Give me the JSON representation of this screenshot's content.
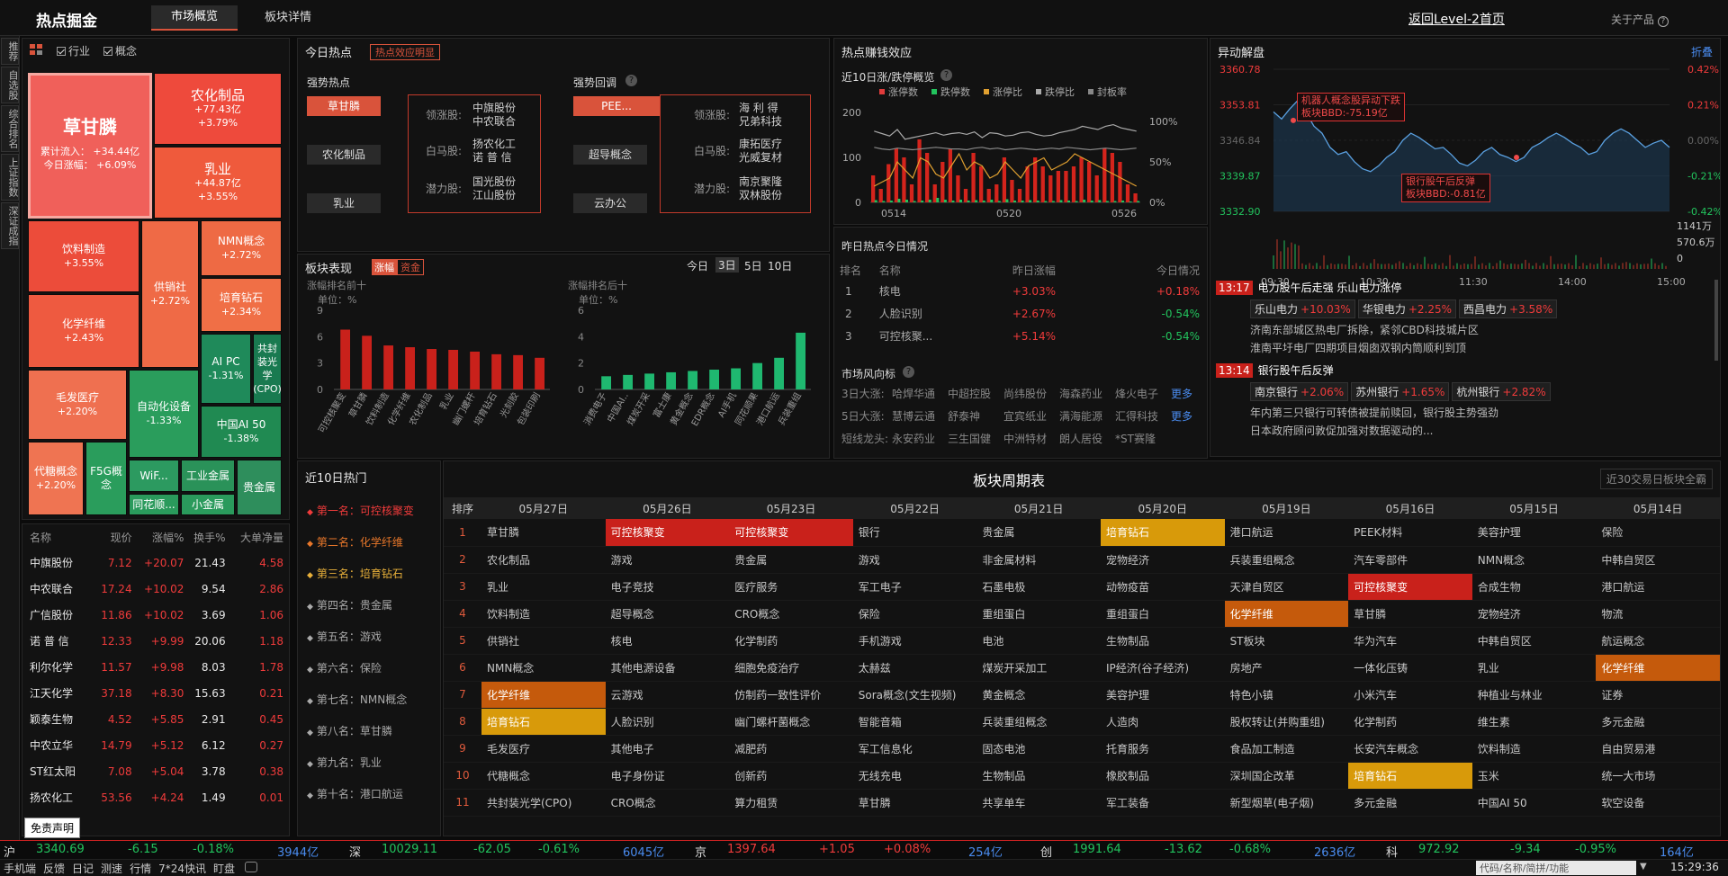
{
  "header": {
    "title": "热点掘金",
    "tabs": [
      "市场概览",
      "板块详情"
    ],
    "back_link": "返回Level-2首页",
    "about": "关于产品"
  },
  "left_strip": [
    "推荐",
    "自选股",
    "综合排名",
    "上证指数",
    "深证成指"
  ],
  "treemap": {
    "filters": [
      "行业",
      "概念"
    ],
    "main": {
      "name": "草甘膦",
      "inflow_label": "累计流入：",
      "inflow": "+34.44亿",
      "change_label": "今日涨幅：",
      "change": "+6.09%"
    },
    "tiles": [
      {
        "name": "农化制品",
        "a": "+77.43亿",
        "b": "+3.79%"
      },
      {
        "name": "乳业",
        "a": "+44.87亿",
        "b": "+3.55%"
      },
      {
        "name": "饮料制造",
        "a": "+3.55%"
      },
      {
        "name": "供销社",
        "a": "+2.72%"
      },
      {
        "name": "NMN概念",
        "a": "+2.72%"
      },
      {
        "name": "培育钻石",
        "a": "+2.34%"
      },
      {
        "name": "化学纤维",
        "a": "+2.43%"
      },
      {
        "name": "AI PC",
        "a": "-1.31%"
      },
      {
        "name": "共封装光学(CPO)",
        "a": ""
      },
      {
        "name": "毛发医疗",
        "a": "+2.20%"
      },
      {
        "name": "自动化设备",
        "a": "-1.33%"
      },
      {
        "name": "中国AI 50",
        "a": "-1.38%"
      },
      {
        "name": "代糖概念",
        "a": "+2.20%"
      },
      {
        "name": "F5G概念",
        "a": ""
      },
      {
        "name": "WiF...",
        "a": ""
      },
      {
        "name": "工业金属",
        "a": ""
      },
      {
        "name": "贵金属",
        "a": ""
      },
      {
        "name": "同花顺...",
        "a": ""
      },
      {
        "name": "小金属",
        "a": ""
      }
    ]
  },
  "stock_table": {
    "headers": [
      "名称",
      "现价",
      "涨幅%",
      "换手%",
      "大单净量"
    ],
    "rows": [
      [
        "中旗股份",
        "7.12",
        "+20.07",
        "21.43",
        "4.58"
      ],
      [
        "中农联合",
        "17.24",
        "+10.02",
        "9.54",
        "2.86"
      ],
      [
        "广信股份",
        "11.86",
        "+10.02",
        "3.69",
        "1.06"
      ],
      [
        "诺 普 信",
        "12.33",
        "+9.99",
        "20.06",
        "1.18"
      ],
      [
        "利尔化学",
        "11.57",
        "+9.98",
        "8.03",
        "1.78"
      ],
      [
        "江天化学",
        "37.18",
        "+8.30",
        "15.63",
        "0.21"
      ],
      [
        "颖泰生物",
        "4.52",
        "+5.85",
        "2.91",
        "0.45"
      ],
      [
        "中农立华",
        "14.79",
        "+5.12",
        "6.12",
        "0.27"
      ],
      [
        "ST红太阳",
        "7.08",
        "+5.04",
        "3.78",
        "0.38"
      ],
      [
        "扬农化工",
        "53.56",
        "+4.24",
        "1.49",
        "0.01"
      ]
    ],
    "disclaimer": "免责声明"
  },
  "today_hot": {
    "title": "今日热点",
    "tag": "热点效应明显",
    "strong": {
      "label": "强势热点",
      "items": [
        "草甘膦",
        "农化制品",
        "乳业"
      ],
      "roles": [
        {
          "r": "领涨股:",
          "v": [
            "中旗股份",
            "中农联合"
          ]
        },
        {
          "r": "白马股:",
          "v": [
            "扬农化工",
            "诺 普 信"
          ]
        },
        {
          "r": "潜力股:",
          "v": [
            "国光股份",
            "江山股份"
          ]
        }
      ]
    },
    "retrace": {
      "label": "强势回调",
      "items": [
        "PEE...",
        "超导概念",
        "云办公"
      ],
      "roles": [
        {
          "r": "领涨股:",
          "v": [
            "海 利 得",
            "兄弟科技"
          ]
        },
        {
          "r": "白马股:",
          "v": [
            "康拓医疗",
            "光威复材"
          ]
        },
        {
          "r": "潜力股:",
          "v": [
            "南京聚隆",
            "双林股份"
          ]
        }
      ]
    }
  },
  "sector_perf": {
    "title": "板块表现",
    "tabs": [
      "涨幅",
      "资金"
    ],
    "periods": [
      "今日",
      "3日",
      "5日",
      "10日"
    ],
    "top": {
      "label": "涨幅排名前十",
      "unit": "单位：%",
      "yticks": [
        "9",
        "6",
        "3",
        "0"
      ],
      "values": [
        6.8,
        6.1,
        5.0,
        4.8,
        4.6,
        4.5,
        4.3,
        4.0,
        3.9,
        3.6
      ],
      "cats": [
        "可控核聚变",
        "草甘膦",
        "饮料制造",
        "化学纤维",
        "农化制品",
        "乳业",
        "幽门螺杆",
        "培育钻石",
        "光刻胶",
        "包装印刷"
      ]
    },
    "bottom": {
      "label": "涨幅排名后十",
      "unit": "单位：%",
      "yticks": [
        "6",
        "4",
        "2",
        "0"
      ],
      "values": [
        1.0,
        1.1,
        1.2,
        1.3,
        1.4,
        1.5,
        1.6,
        2.0,
        2.4,
        4.3
      ],
      "cats": [
        "消费电子",
        "中国AI..",
        "煤炭开采",
        "富士康",
        "黄金概念",
        "EDR概念",
        "AI手机",
        "同花顺果",
        "港口航运",
        "兵装重组"
      ]
    }
  },
  "ten_day": {
    "title": "近10日涨/跌停概览",
    "legend": [
      "涨停数",
      "跌停数",
      "涨停比",
      "跌停比",
      "封板率"
    ],
    "yleft": [
      "200",
      "100",
      "0"
    ],
    "yright": [
      "100%",
      "50%",
      "0%"
    ],
    "xlabels": [
      "0514",
      "0520",
      "0526"
    ],
    "up": [
      60,
      30,
      85,
      120,
      100,
      40,
      140,
      110,
      40,
      90,
      120,
      60,
      30,
      110,
      80,
      30,
      40,
      100,
      50,
      30,
      80,
      100,
      80,
      60,
      70,
      70,
      80,
      100,
      90,
      60,
      120,
      110,
      90,
      40,
      20
    ],
    "down": [
      5,
      3,
      4,
      8,
      6,
      3,
      4,
      6,
      10,
      6,
      4,
      6,
      4,
      5,
      4,
      6,
      3,
      7,
      4,
      4,
      5,
      4,
      3,
      3,
      5,
      4,
      3,
      6,
      4,
      5,
      3,
      3,
      4,
      2,
      3
    ]
  },
  "yesterday": {
    "title": "昨日热点今日情况",
    "headers": [
      "排名",
      "名称",
      "昨日涨幅",
      "今日情况"
    ],
    "rows": [
      [
        "1",
        "核电",
        "+3.03%",
        "+0.18%"
      ],
      [
        "2",
        "人脸识别",
        "+2.67%",
        "-0.54%"
      ],
      [
        "3",
        "可控核聚...",
        "+5.14%",
        "-0.54%"
      ]
    ]
  },
  "wind": {
    "title": "市场风向标",
    "rows": [
      {
        "label": "3日大涨:",
        "items": [
          "哈焊华通",
          "中超控股",
          "尚纬股份",
          "海森药业",
          "烽火电子"
        ],
        "more": "更多"
      },
      {
        "label": "5日大涨:",
        "items": [
          "慧博云通",
          "舒泰神",
          "宜宾纸业",
          "满海能源",
          "汇得科技"
        ],
        "more": "更多"
      },
      {
        "label": "短线龙头:",
        "items": [
          "永安药业",
          "三生国健",
          "中洲特材",
          "朗人居役",
          "*ST赛隆"
        ],
        "more": ""
      }
    ]
  },
  "abnormal": {
    "title": "异动解盘",
    "fold": "折叠",
    "yleft": [
      "3360.78",
      "3353.81",
      "3346.84",
      "3339.87",
      "3332.90"
    ],
    "yright": [
      "0.42%",
      "0.21%",
      "0.00%",
      "-0.21%",
      "-0.42%"
    ],
    "vol": [
      "1141万",
      "570.6万",
      "0"
    ],
    "xlabels": [
      "09:30",
      "10:30",
      "11:30",
      "14:00",
      "15:00"
    ],
    "callout1": [
      "机器人概念股异动下跌",
      "板块BBD:-75.19亿"
    ],
    "callout2": [
      "银行股午后反弹",
      "板块BBD:-0.81亿"
    ],
    "news": [
      {
        "time": "13:17",
        "title": "电力股午后走强 乐山电力涨停",
        "tags": [
          [
            "乐山电力",
            "+10.03%"
          ],
          [
            "华银电力",
            "+2.25%"
          ],
          [
            "西昌电力",
            "+3.58%"
          ]
        ],
        "lines": [
          "济南东部城区热电厂拆除，紧邻CBD科技城片区",
          "淮南平圩电厂四期项目烟囱双钢内筒顺利到顶"
        ]
      },
      {
        "time": "13:14",
        "title": "银行股午后反弹",
        "tags": [
          [
            "南京银行",
            "+2.06%"
          ],
          [
            "苏州银行",
            "+1.65%"
          ],
          [
            "杭州银行",
            "+2.82%"
          ]
        ],
        "lines": [
          "年内第三只银行可转债被提前赎回，银行股主势强劲",
          "日本政府顾问敦促加强对数据驱动的..."
        ]
      }
    ]
  },
  "ten_day_hot": {
    "title": "近10日热门",
    "items": [
      "第一名：可控核聚变",
      "第二名：化学纤维",
      "第三名：培育钻石",
      "第四名：贵金属",
      "第五名：游戏",
      "第六名：保险",
      "第七名：NMN概念",
      "第八名：草甘膦",
      "第九名：乳业",
      "第十名：港口航运"
    ]
  },
  "cycle": {
    "title": "板块周期表",
    "btn": "近30交易日板块全霸",
    "rank_header": "排序",
    "dates": [
      "05月27日",
      "05月26日",
      "05月23日",
      "05月22日",
      "05月21日",
      "05月20日",
      "05月19日",
      "05月16日",
      "05月15日",
      "05月14日"
    ],
    "rows": [
      [
        "草甘膦",
        "可控核聚变",
        "可控核聚变",
        "银行",
        "贵金属",
        "培育钻石",
        "港口航运",
        "PEEK材料",
        "美容护理",
        "保险"
      ],
      [
        "农化制品",
        "游戏",
        "贵金属",
        "游戏",
        "非金属材料",
        "宠物经济",
        "兵装重组概念",
        "汽车零部件",
        "NMN概念",
        "中韩自贸区"
      ],
      [
        "乳业",
        "电子竞技",
        "医疗服务",
        "军工电子",
        "石墨电极",
        "动物疫苗",
        "天津自贸区",
        "可控核聚变",
        "合成生物",
        "港口航运"
      ],
      [
        "饮料制造",
        "超导概念",
        "CRO概念",
        "保险",
        "重组蛋白",
        "重组蛋白",
        "化学纤维",
        "草甘膦",
        "宠物经济",
        "物流"
      ],
      [
        "供销社",
        "核电",
        "化学制药",
        "手机游戏",
        "电池",
        "生物制品",
        "ST板块",
        "华为汽车",
        "中韩自贸区",
        "航运概念"
      ],
      [
        "NMN概念",
        "其他电源设备",
        "细胞免疫治疗",
        "太赫兹",
        "煤炭开采加工",
        "IP经济(谷子经济)",
        "房地产",
        "一体化压铸",
        "乳业",
        "化学纤维"
      ],
      [
        "化学纤维",
        "云游戏",
        "仿制药一致性评价",
        "Sora概念(文生视频)",
        "黄金概念",
        "美容护理",
        "特色小镇",
        "小米汽车",
        "种植业与林业",
        "证券"
      ],
      [
        "培育钻石",
        "人脸识别",
        "幽门螺杆菌概念",
        "智能音箱",
        "兵装重组概念",
        "人造肉",
        "股权转让(并购重组)",
        "化学制药",
        "维生素",
        "多元金融"
      ],
      [
        "毛发医疗",
        "其他电子",
        "减肥药",
        "军工信息化",
        "固态电池",
        "托育服务",
        "食品加工制造",
        "长安汽车概念",
        "饮料制造",
        "自由贸易港"
      ],
      [
        "代糖概念",
        "电子身份证",
        "创新药",
        "无线充电",
        "生物制品",
        "橡胶制品",
        "深圳国企改革",
        "培育钻石",
        "玉米",
        "统一大市场"
      ],
      [
        "共封装光学(CPO)",
        "CRO概念",
        "算力租赁",
        "草甘膦",
        "共享单车",
        "军工装备",
        "新型烟草(电子烟)",
        "多元金融",
        "中国AI 50",
        "软空设备"
      ]
    ]
  },
  "indices": [
    {
      "name": "沪",
      "v": "3340.69",
      "c": "-6.15",
      "p": "-0.18%",
      "amt": "3944亿"
    },
    {
      "name": "深",
      "v": "10029.11",
      "c": "-62.05",
      "p": "-0.61%",
      "amt": "6045亿"
    },
    {
      "name": "京",
      "v": "1397.64",
      "c": "+1.05",
      "p": "+0.08%",
      "amt": "254亿"
    },
    {
      "name": "创",
      "v": "1991.64",
      "c": "-13.62",
      "p": "-0.68%",
      "amt": "2636亿"
    },
    {
      "name": "科",
      "v": "972.92",
      "c": "-9.34",
      "p": "-0.95%",
      "amt": "164亿"
    }
  ],
  "footer": {
    "items": [
      "手机端",
      "反馈",
      "日记",
      "测速",
      "行情",
      "7*24快讯",
      "盯盘"
    ],
    "search_placeholder": "代码/名称/简拼/功能",
    "time": "15:29:36"
  },
  "colors": {
    "up": "#f03b3b",
    "down": "#22c35d",
    "accent": "#d9533b"
  }
}
